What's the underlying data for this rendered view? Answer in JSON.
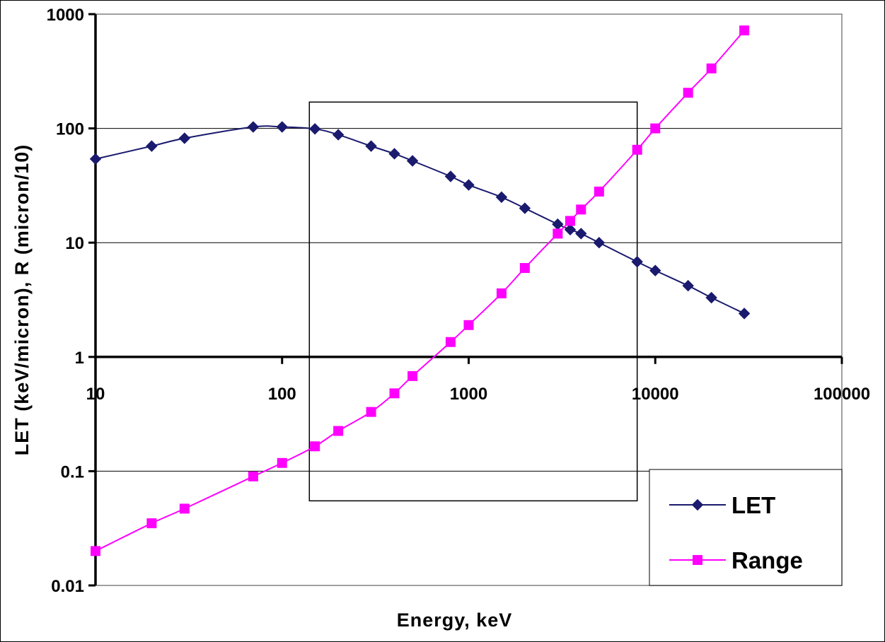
{
  "chart_data": {
    "type": "line",
    "x_scale": "log",
    "y_scale": "log",
    "xlabel": "Energy, keV",
    "ylabel": "LET (keV/micron), R (micron/10)",
    "xlim": [
      10,
      100000
    ],
    "ylim": [
      0.01,
      1000
    ],
    "x_ticks": [
      "10",
      "100",
      "1000",
      "10000",
      "100000"
    ],
    "y_ticks": [
      "0.01",
      "0.1",
      "1",
      "10",
      "100",
      "1000"
    ],
    "x_tick_values": [
      10,
      100,
      1000,
      10000,
      100000
    ],
    "y_tick_values": [
      0.01,
      0.1,
      1,
      10,
      100,
      1000
    ],
    "grid": "horizontal major gridlines",
    "legend_position": "bottom-right",
    "highlight_box": {
      "x_range": [
        140,
        8000
      ],
      "y_range": [
        0.055,
        170
      ]
    },
    "series": [
      {
        "name": "LET",
        "marker": "diamond",
        "color": "#1a1a6e",
        "x": [
          10,
          20,
          30,
          70,
          100,
          150,
          200,
          300,
          400,
          500,
          800,
          1000,
          1500,
          2000,
          3000,
          3500,
          4000,
          5000,
          8000,
          10000,
          15000,
          20000,
          30000
        ],
        "y": [
          54,
          70,
          82,
          103,
          103,
          99,
          88,
          70,
          60,
          52,
          38,
          32,
          25,
          20,
          14.5,
          13,
          12,
          10,
          6.8,
          5.7,
          4.2,
          3.3,
          2.4
        ]
      },
      {
        "name": "Range",
        "marker": "square",
        "color": "#ff00ff",
        "x": [
          10,
          20,
          30,
          70,
          100,
          150,
          200,
          300,
          400,
          500,
          800,
          1000,
          1500,
          2000,
          3000,
          3500,
          4000,
          5000,
          8000,
          10000,
          15000,
          20000,
          30000
        ],
        "y": [
          0.02,
          0.035,
          0.047,
          0.09,
          0.118,
          0.165,
          0.225,
          0.33,
          0.48,
          0.68,
          1.35,
          1.9,
          3.6,
          6,
          12,
          15.5,
          19.5,
          28,
          65,
          100,
          205,
          335,
          720
        ]
      }
    ]
  }
}
